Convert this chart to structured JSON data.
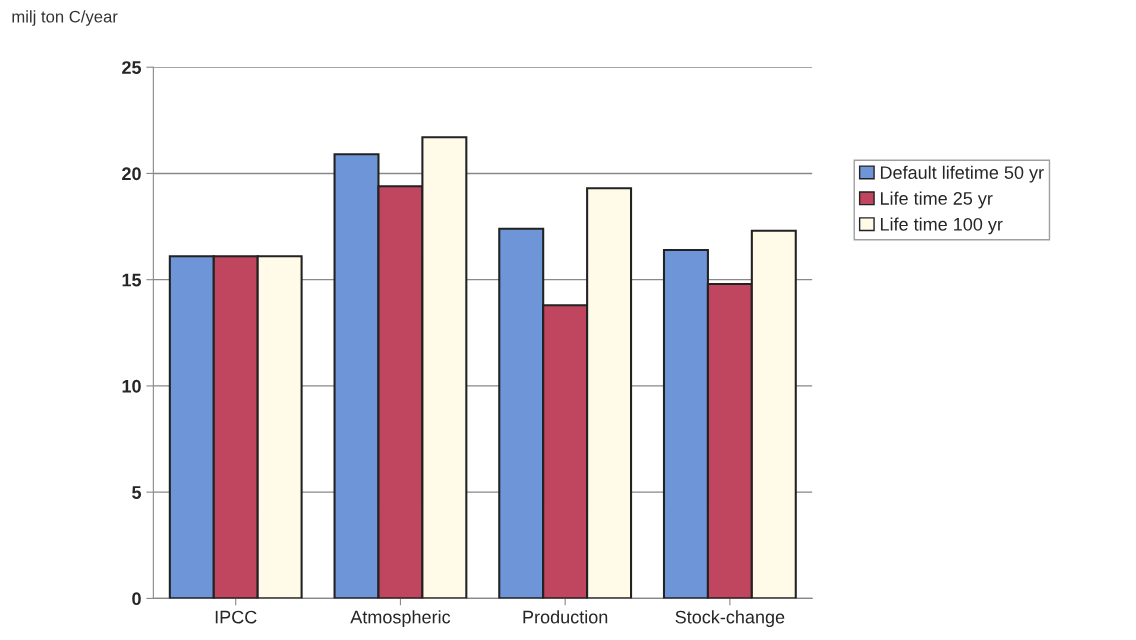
{
  "chart_data": {
    "type": "bar",
    "ylabel": "milj ton C/year",
    "categories": [
      "IPCC",
      "Atmospheric",
      "Production",
      "Stock-change"
    ],
    "series": [
      {
        "name": "Default lifetime 50 yr",
        "color": "#6e95d8",
        "values": [
          16.1,
          20.9,
          17.4,
          16.4
        ]
      },
      {
        "name": "Life time 25 yr",
        "color": "#c0455f",
        "values": [
          16.1,
          19.4,
          13.8,
          14.8
        ]
      },
      {
        "name": "Life time 100 yr",
        "color": "#fffbe8",
        "values": [
          16.1,
          21.7,
          19.3,
          17.3
        ]
      }
    ],
    "ylim": [
      0,
      25
    ],
    "yticks": [
      0,
      5,
      10,
      15,
      20,
      25
    ],
    "grid": "y",
    "legend": "right"
  }
}
